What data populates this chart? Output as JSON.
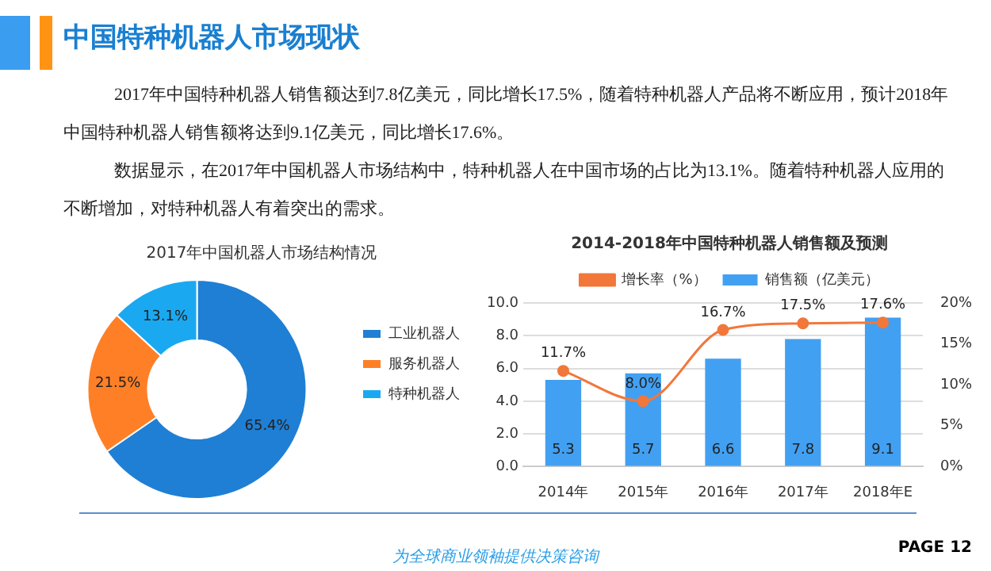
{
  "chart_data": [
    {
      "type": "donut",
      "title": "2017年中国机器人市场结构情况",
      "categories": [
        "工业机器人",
        "服务机器人",
        "特种机器人"
      ],
      "values": [
        65.4,
        21.5,
        13.1
      ],
      "colors": [
        "#1f7fd4",
        "#ff7f27",
        "#1aa9f0"
      ],
      "value_labels": [
        "65.4%",
        "21.5%",
        "13.1%"
      ],
      "legend": "right",
      "annotations": [
        "中国特种机器人市场现状",
        "2017年中国特种机器人销售额达到7.8亿美元，同比增长17.5%，随着特种机器人产品将不断应用，预计2018年中国特种机器人销售额将达到9.1亿美元，同比增长17.6%。",
        "数据显示，在2017年中国机器人市场结构中，特种机器人在中国市场的占比为13.1%。随着特种机器人应用的不断增加，对特种机器人有着突出的需求。"
      ]
    },
    {
      "type": "bar",
      "title": "2014-2018年中国特种机器人销售额及预测",
      "categories": [
        "2014年",
        "2015年",
        "2016年",
        "2017年",
        "2018年E"
      ],
      "series": [
        {
          "name": "销售额（亿美元）",
          "type": "bar",
          "color": "#42a0f2",
          "values": [
            5.3,
            5.7,
            6.6,
            7.8,
            9.1
          ],
          "value_labels": [
            "5.3",
            "5.7",
            "6.6",
            "7.8",
            "9.1"
          ]
        },
        {
          "name": "增长率（%）",
          "type": "line",
          "axis": "y2",
          "color": "#f2773a",
          "values": [
            11.7,
            8.0,
            16.7,
            17.5,
            17.6
          ],
          "value_labels": [
            "11.7%",
            "8.0%",
            "16.7%",
            "17.5%",
            "17.6%"
          ]
        }
      ],
      "ylim": [
        0,
        10
      ],
      "yticks": [
        {
          "value": 0,
          "label": "0.0"
        },
        {
          "value": 2,
          "label": "2.0"
        },
        {
          "value": 4,
          "label": "4.0"
        },
        {
          "value": 6,
          "label": "6.0"
        },
        {
          "value": 8,
          "label": "8.0"
        },
        {
          "value": 10,
          "label": "10.0"
        }
      ],
      "y2lim": [
        0,
        20
      ],
      "y2ticks": [
        {
          "value": 0,
          "label": "0%"
        },
        {
          "value": 5,
          "label": "5%"
        },
        {
          "value": 10,
          "label": "10%"
        },
        {
          "value": 15,
          "label": "15%"
        },
        {
          "value": 20,
          "label": "20%"
        }
      ],
      "grid": "y",
      "legend": "top",
      "marker": "circle",
      "annotations": [
        "为全球商业领袖提供决策咨询",
        "PAGE 12"
      ]
    }
  ]
}
